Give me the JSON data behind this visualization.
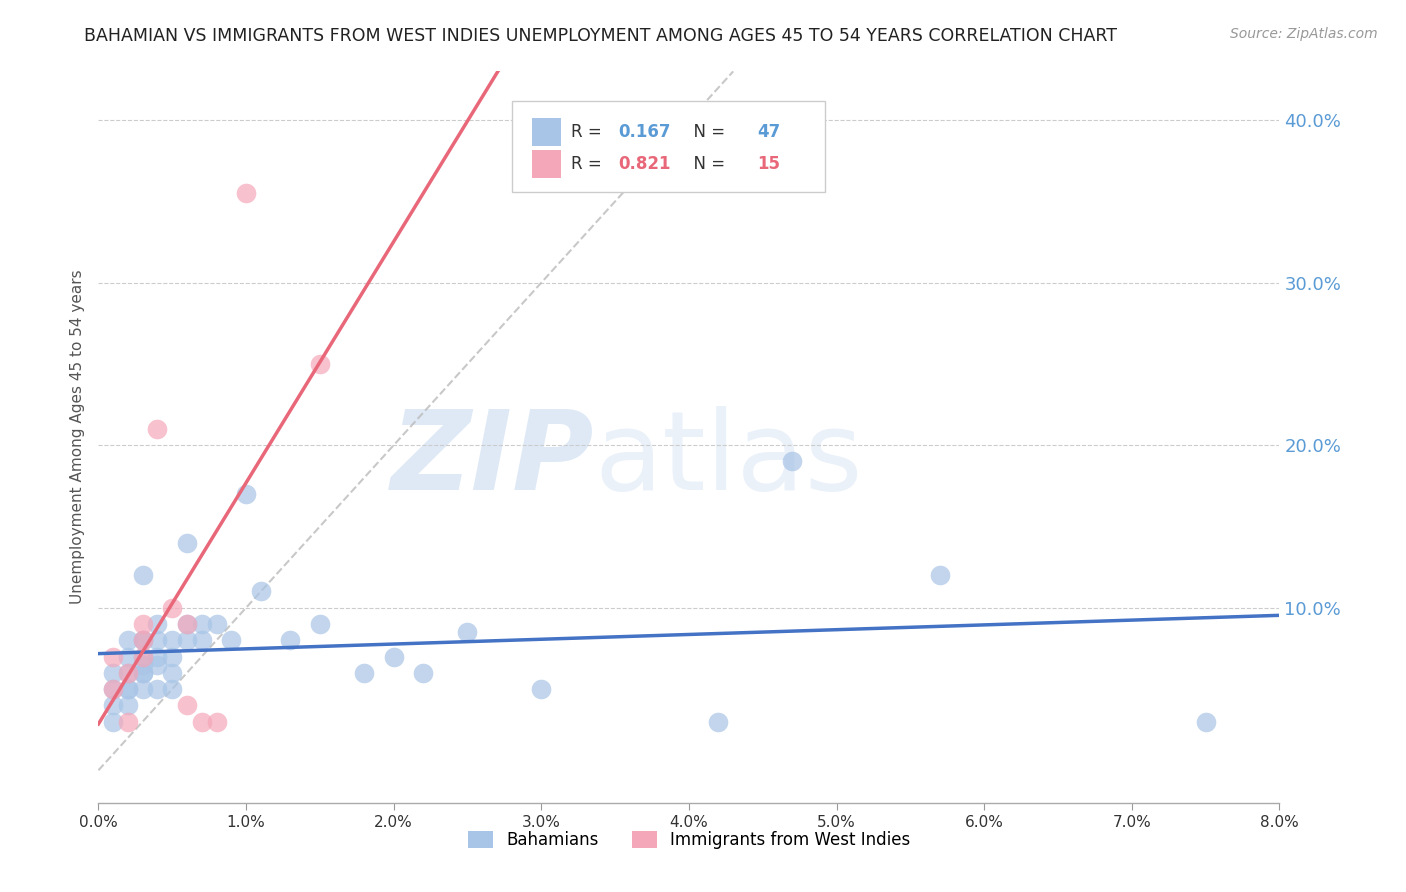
{
  "title": "BAHAMIAN VS IMMIGRANTS FROM WEST INDIES UNEMPLOYMENT AMONG AGES 45 TO 54 YEARS CORRELATION CHART",
  "source": "Source: ZipAtlas.com",
  "ylabel": "Unemployment Among Ages 45 to 54 years",
  "xlim": [
    0.0,
    0.08
  ],
  "ylim": [
    -0.02,
    0.43
  ],
  "plot_ylim": [
    0.0,
    0.42
  ],
  "xticks": [
    0.0,
    0.01,
    0.02,
    0.03,
    0.04,
    0.05,
    0.06,
    0.07,
    0.08
  ],
  "yticks_right": [
    0.1,
    0.2,
    0.3,
    0.4
  ],
  "bahamian_color": "#a8c4e6",
  "west_indies_color": "#f4a7b9",
  "bahamian_R": 0.167,
  "bahamian_N": 47,
  "west_indies_R": 0.821,
  "west_indies_N": 15,
  "bg_color": "#ffffff",
  "grid_color": "#cccccc",
  "title_color": "#222222",
  "axis_label_color": "#555555",
  "right_axis_color": "#5b9bd5",
  "bah_line_color": "#4472c4",
  "wi_line_color": "#e8687a",
  "legend_R_color_bah": "#5b9bd5",
  "legend_N_color_bah": "#5b9bd5",
  "legend_R_color_wi": "#e8687a",
  "legend_N_color_wi": "#e8687a",
  "bahamian_x": [
    0.001,
    0.001,
    0.001,
    0.001,
    0.002,
    0.002,
    0.002,
    0.002,
    0.002,
    0.002,
    0.003,
    0.003,
    0.003,
    0.003,
    0.003,
    0.003,
    0.003,
    0.003,
    0.004,
    0.004,
    0.004,
    0.004,
    0.004,
    0.005,
    0.005,
    0.005,
    0.005,
    0.006,
    0.006,
    0.006,
    0.007,
    0.007,
    0.008,
    0.009,
    0.01,
    0.011,
    0.013,
    0.015,
    0.018,
    0.02,
    0.022,
    0.025,
    0.03,
    0.042,
    0.047,
    0.057,
    0.075
  ],
  "bahamian_y": [
    0.05,
    0.04,
    0.06,
    0.03,
    0.05,
    0.06,
    0.07,
    0.08,
    0.04,
    0.05,
    0.06,
    0.07,
    0.08,
    0.12,
    0.06,
    0.05,
    0.08,
    0.065,
    0.07,
    0.05,
    0.08,
    0.09,
    0.065,
    0.07,
    0.06,
    0.08,
    0.05,
    0.08,
    0.09,
    0.14,
    0.08,
    0.09,
    0.09,
    0.08,
    0.17,
    0.11,
    0.08,
    0.09,
    0.06,
    0.07,
    0.06,
    0.085,
    0.05,
    0.03,
    0.19,
    0.12,
    0.03
  ],
  "west_indies_x": [
    0.001,
    0.001,
    0.002,
    0.002,
    0.003,
    0.003,
    0.003,
    0.004,
    0.005,
    0.006,
    0.006,
    0.007,
    0.008,
    0.01,
    0.015
  ],
  "west_indies_y": [
    0.05,
    0.07,
    0.06,
    0.03,
    0.07,
    0.08,
    0.09,
    0.21,
    0.1,
    0.09,
    0.04,
    0.03,
    0.03,
    0.355,
    0.25
  ]
}
